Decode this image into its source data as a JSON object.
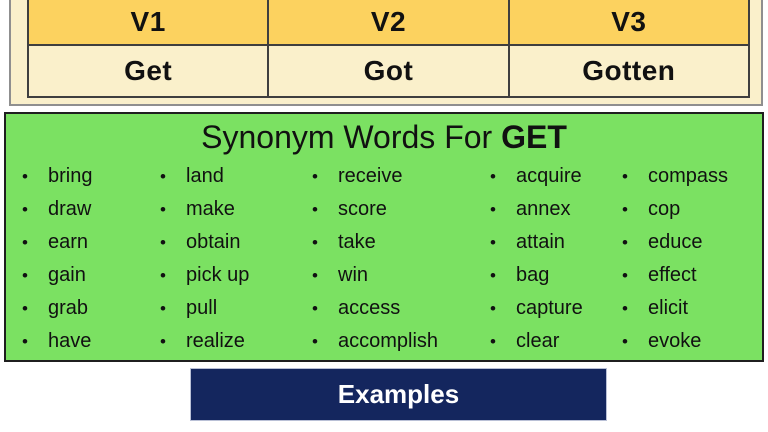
{
  "verb_table": {
    "headers": [
      "V1",
      "V2",
      "V3"
    ],
    "forms": [
      "Get",
      "Got",
      "Gotten"
    ]
  },
  "synonym_section": {
    "title_prefix": "Synonym Words For ",
    "title_word": "GET",
    "bullet_icon": "•",
    "columns": [
      [
        "bring",
        "draw",
        "earn",
        "gain",
        "grab",
        "have"
      ],
      [
        "land",
        "make",
        "obtain",
        "pick up",
        "pull",
        "realize"
      ],
      [
        "receive",
        "score",
        "take",
        "win",
        "access",
        "accomplish"
      ],
      [
        "acquire",
        "annex",
        "attain",
        "bag",
        "capture",
        "clear"
      ],
      [
        "compass",
        "cop",
        "educe",
        "effect",
        "elicit",
        "evoke"
      ]
    ]
  },
  "examples_banner": {
    "label": "Examples"
  },
  "colors": {
    "table_header_bg": "#FCD25F",
    "table_cell_bg": "#FAF0CB",
    "table_border": "#3f3f3f",
    "synonym_bg": "#7BE162",
    "examples_bg": "#14265E",
    "examples_text": "#FFFFFF"
  }
}
